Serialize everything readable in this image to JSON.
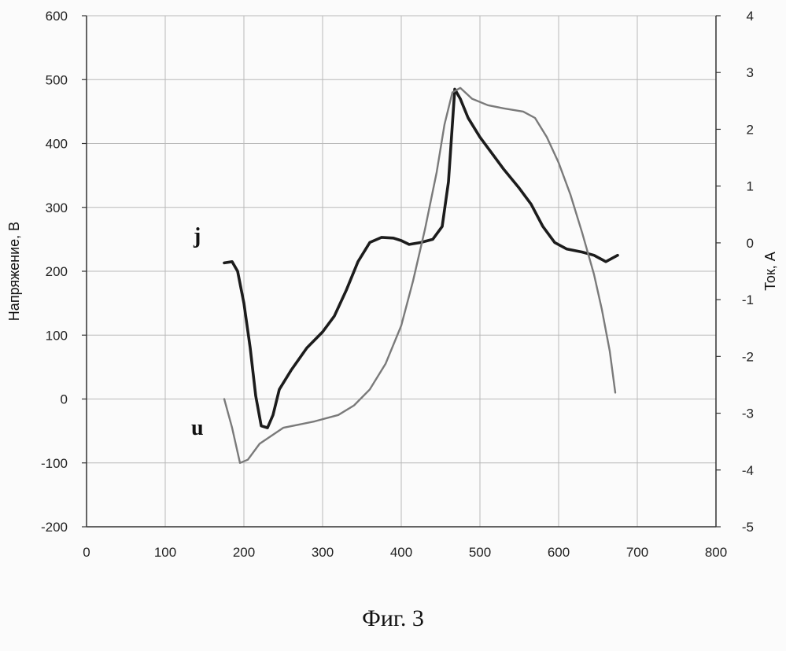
{
  "caption": "Фиг. 3",
  "chart_data": {
    "type": "line",
    "xlabel": "",
    "ylabel": "Напряжение, В",
    "y2label": "Ток, А",
    "xlim": [
      0,
      800
    ],
    "ylim": [
      -200,
      600
    ],
    "y2lim": [
      -5,
      4
    ],
    "xticks": [
      "0",
      "100",
      "200",
      "300",
      "400",
      "500",
      "600",
      "700",
      "800"
    ],
    "yticks": [
      "-200",
      "-100",
      "0",
      "100",
      "200",
      "300",
      "400",
      "500",
      "600"
    ],
    "y2ticks": [
      "-5",
      "-4",
      "-3",
      "-2",
      "-1",
      "0",
      "1",
      "2",
      "3",
      "4"
    ],
    "grid": true,
    "series": [
      {
        "name": "j",
        "axis": "left",
        "color": "#1c1c1c",
        "points": [
          [
            175,
            213
          ],
          [
            185,
            215
          ],
          [
            192,
            200
          ],
          [
            200,
            150
          ],
          [
            208,
            80
          ],
          [
            215,
            5
          ],
          [
            222,
            -42
          ],
          [
            230,
            -45
          ],
          [
            237,
            -25
          ],
          [
            245,
            15
          ],
          [
            260,
            45
          ],
          [
            280,
            80
          ],
          [
            300,
            105
          ],
          [
            315,
            130
          ],
          [
            330,
            170
          ],
          [
            345,
            215
          ],
          [
            360,
            245
          ],
          [
            375,
            253
          ],
          [
            390,
            252
          ],
          [
            400,
            248
          ],
          [
            410,
            242
          ],
          [
            425,
            245
          ],
          [
            440,
            250
          ],
          [
            452,
            270
          ],
          [
            460,
            340
          ],
          [
            468,
            485
          ],
          [
            475,
            470
          ],
          [
            485,
            440
          ],
          [
            500,
            410
          ],
          [
            515,
            385
          ],
          [
            530,
            360
          ],
          [
            550,
            330
          ],
          [
            565,
            305
          ],
          [
            580,
            270
          ],
          [
            595,
            245
          ],
          [
            610,
            235
          ],
          [
            630,
            230
          ],
          [
            645,
            225
          ],
          [
            660,
            215
          ],
          [
            675,
            225
          ]
        ]
      },
      {
        "name": "u",
        "axis": "left",
        "color": "#7a7a7a",
        "points": [
          [
            175,
            0
          ],
          [
            185,
            -45
          ],
          [
            195,
            -100
          ],
          [
            205,
            -95
          ],
          [
            220,
            -70
          ],
          [
            250,
            -45
          ],
          [
            290,
            -35
          ],
          [
            320,
            -25
          ],
          [
            340,
            -10
          ],
          [
            360,
            15
          ],
          [
            380,
            55
          ],
          [
            400,
            115
          ],
          [
            415,
            185
          ],
          [
            430,
            265
          ],
          [
            445,
            355
          ],
          [
            455,
            430
          ],
          [
            465,
            480
          ],
          [
            475,
            487
          ],
          [
            490,
            470
          ],
          [
            510,
            460
          ],
          [
            530,
            455
          ],
          [
            555,
            450
          ],
          [
            570,
            440
          ],
          [
            585,
            410
          ],
          [
            600,
            370
          ],
          [
            615,
            320
          ],
          [
            630,
            260
          ],
          [
            645,
            195
          ],
          [
            655,
            140
          ],
          [
            665,
            75
          ],
          [
            672,
            10
          ]
        ]
      }
    ],
    "annotations": [
      "j",
      "u"
    ]
  }
}
